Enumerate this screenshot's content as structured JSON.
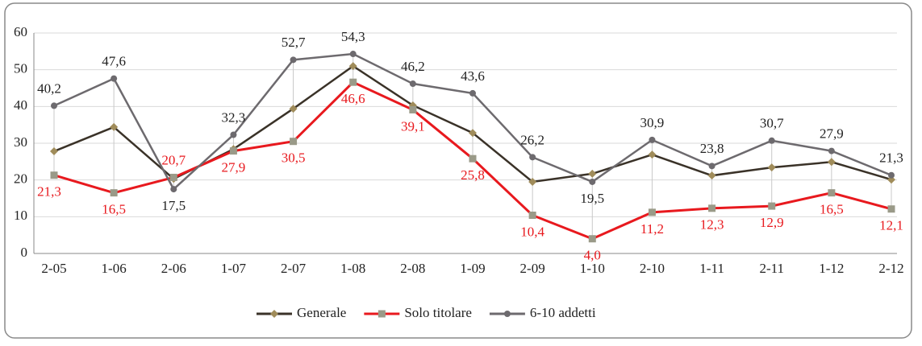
{
  "chart_data": {
    "type": "line",
    "categories": [
      "2-05",
      "1-06",
      "2-06",
      "1-07",
      "2-07",
      "1-08",
      "2-08",
      "1-09",
      "2-09",
      "1-10",
      "2-10",
      "1-11",
      "2-11",
      "1-12",
      "2-12"
    ],
    "series": [
      {
        "name": "Generale",
        "color": "#3a3228",
        "marker_color": "#a08c5a",
        "marker": "diamond",
        "values": [
          27.8,
          34.4,
          20.3,
          28.4,
          39.4,
          51.0,
          40.3,
          32.8,
          19.5,
          21.7,
          26.9,
          21.2,
          23.4,
          24.9,
          20.1
        ]
      },
      {
        "name": "Solo titolare",
        "color": "#e8191e",
        "marker_color": "#9a9a88",
        "marker": "square",
        "label_color": "#e8191e",
        "values": [
          21.3,
          16.5,
          20.7,
          27.9,
          30.5,
          46.6,
          39.1,
          25.8,
          10.4,
          4.0,
          11.2,
          12.3,
          12.9,
          16.5,
          12.1
        ],
        "value_labels": [
          "21,3",
          "16,5",
          "20,7",
          "27,9",
          "30,5",
          "46,6",
          "39,1",
          "25,8",
          "10,4",
          "4,0",
          "11,2",
          "12,3",
          "12,9",
          "16,5",
          "12,1"
        ]
      },
      {
        "name": "6-10 addetti",
        "color": "#6d6a6e",
        "marker_color": "#6d6a6e",
        "marker": "circle",
        "label_color": "#222222",
        "values": [
          40.2,
          47.6,
          17.5,
          32.3,
          52.7,
          54.3,
          46.2,
          43.6,
          26.2,
          19.5,
          30.9,
          23.8,
          30.7,
          27.9,
          21.3
        ],
        "value_labels": [
          "40,2",
          "47,6",
          "17,5",
          "32,3",
          "52,7",
          "54,3",
          "46,2",
          "43,6",
          "26,2",
          "19,5",
          "30,9",
          "23,8",
          "30,7",
          "27,9",
          "21,3"
        ]
      }
    ],
    "ylim": [
      0,
      60
    ],
    "yticks": [
      0,
      10,
      20,
      30,
      40,
      50,
      60
    ],
    "grid": true,
    "legend": "bottom"
  }
}
